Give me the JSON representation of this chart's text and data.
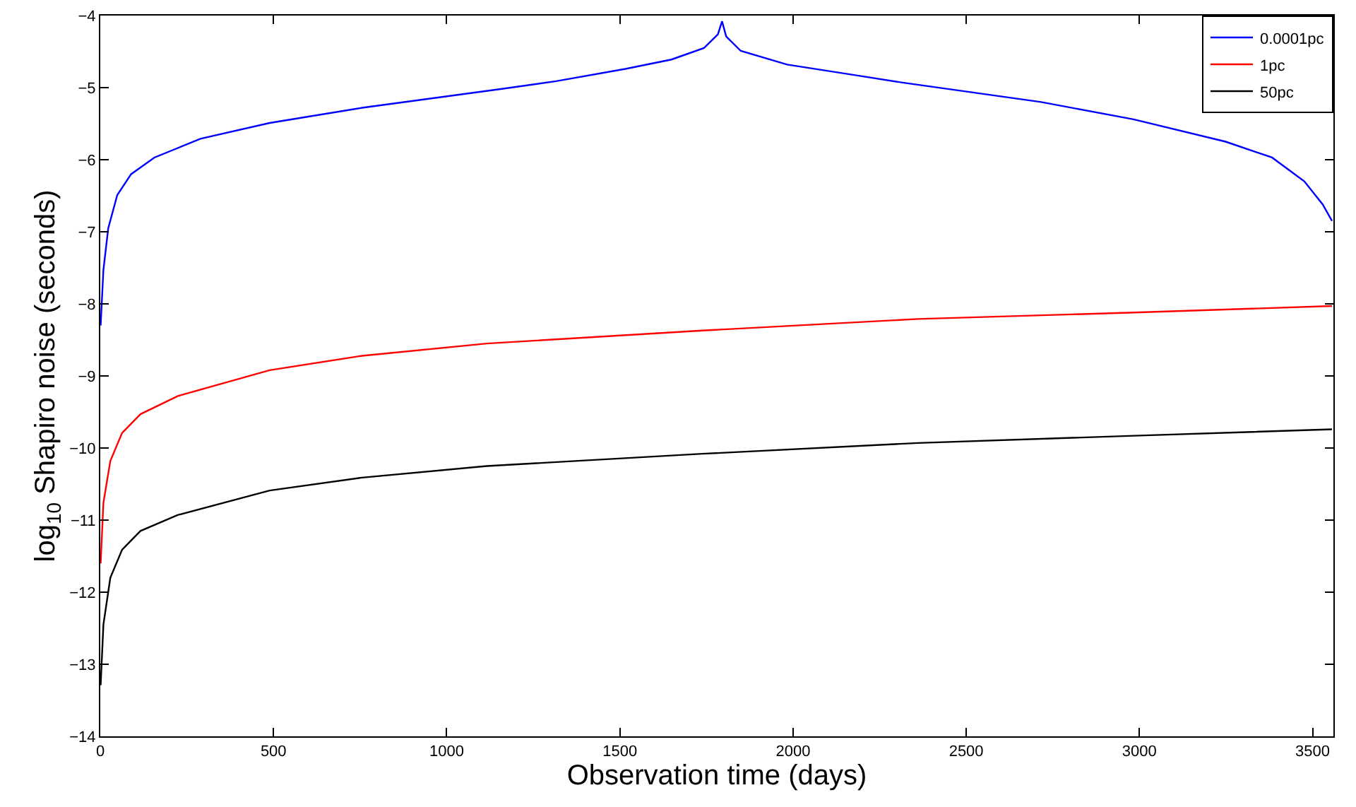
{
  "chart_data": {
    "type": "line",
    "xlabel": "Observation time (days)",
    "ylabel": "log$_{10}$ Shapiro noise (seconds)",
    "xlim": [
      0,
      3560
    ],
    "ylim": [
      -14,
      -4
    ],
    "xticks": [
      0,
      500,
      1000,
      1500,
      2000,
      2500,
      3000,
      3500
    ],
    "yticks": [
      -14,
      -13,
      -12,
      -11,
      -10,
      -9,
      -8,
      -7,
      -6,
      -5,
      -4
    ],
    "grid": false,
    "legend": "top right",
    "marker": "none",
    "line_style": "solid",
    "series": [
      {
        "name": "0.0001pc",
        "color": "#0000ff",
        "x": [
          1,
          9,
          23,
          49,
          89,
          156,
          289,
          489,
          756,
          1156,
          1316,
          1516,
          1649,
          1743,
          1783,
          1795,
          1807,
          1849,
          1983,
          2183,
          2316,
          2716,
          2983,
          3249,
          3383,
          3476,
          3529,
          3556
        ],
        "values": [
          -8.3,
          -7.53,
          -6.95,
          -6.49,
          -6.2,
          -5.97,
          -5.71,
          -5.49,
          -5.28,
          -5.02,
          -4.91,
          -4.74,
          -4.61,
          -4.45,
          -4.26,
          -4.08,
          -4.29,
          -4.49,
          -4.68,
          -4.83,
          -4.93,
          -5.2,
          -5.44,
          -5.75,
          -5.97,
          -6.3,
          -6.62,
          -6.85
        ]
      },
      {
        "name": "1pc",
        "color": "#ff0000",
        "x": [
          1,
          9,
          29,
          63,
          116,
          223,
          489,
          756,
          1116,
          1738,
          2361,
          2984,
          3556
        ],
        "values": [
          -11.6,
          -10.76,
          -10.18,
          -9.79,
          -9.53,
          -9.28,
          -8.92,
          -8.72,
          -8.55,
          -8.37,
          -8.21,
          -8.12,
          -8.03
        ]
      },
      {
        "name": "50pc",
        "color": "#000000",
        "x": [
          1,
          9,
          29,
          63,
          116,
          223,
          489,
          756,
          1116,
          1738,
          2361,
          2984,
          3556
        ],
        "values": [
          -13.29,
          -12.45,
          -11.8,
          -11.41,
          -11.15,
          -10.93,
          -10.59,
          -10.41,
          -10.25,
          -10.08,
          -9.93,
          -9.83,
          -9.74
        ]
      }
    ]
  }
}
